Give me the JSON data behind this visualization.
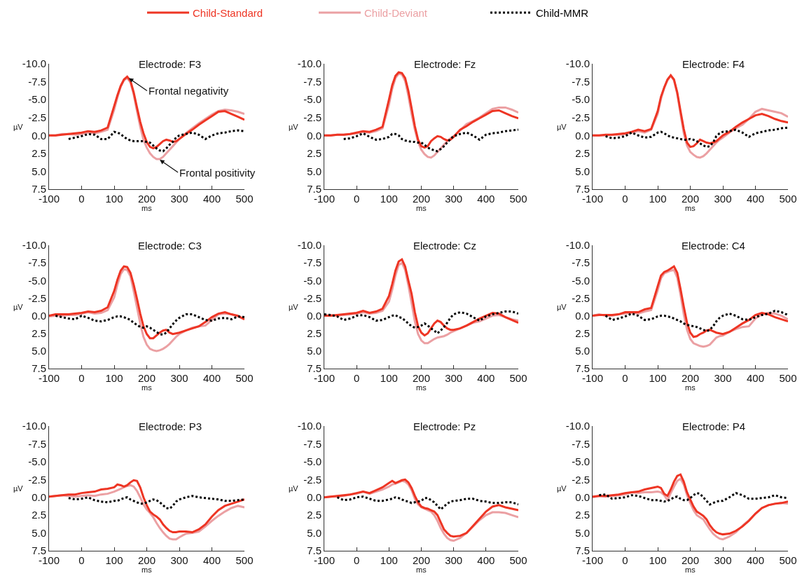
{
  "chart_data": [
    {
      "type": "line",
      "title": "Electrode: F3",
      "xlabel": "ms",
      "ylabel": "µV",
      "legend": "top",
      "xlim": [
        -100,
        500
      ],
      "xticks": [
        -100,
        0,
        100,
        200,
        300,
        400,
        500
      ],
      "ylim": [
        7.5,
        -10
      ],
      "yticks": [
        {
          "value": -10,
          "label": "-10.0"
        },
        {
          "value": -7.5,
          "label": "-7.5"
        },
        {
          "value": -5,
          "label": "-5.0"
        },
        {
          "value": -2.5,
          "label": "-2.5"
        },
        {
          "value": 0,
          "label": "0.0"
        },
        {
          "value": 2.5,
          "label": "2.5"
        },
        {
          "value": 5,
          "label": "5.0"
        },
        {
          "value": 7.5,
          "label": "7.5"
        }
      ],
      "annotations": [
        {
          "text": "Frontal negativity",
          "x": 145,
          "y": -8.0
        },
        {
          "text": "Frontal positivity",
          "x": 240,
          "y": 3.4
        }
      ],
      "x": [
        -100,
        -80,
        -60,
        -40,
        -20,
        0,
        20,
        40,
        60,
        80,
        100,
        110,
        120,
        130,
        140,
        150,
        160,
        170,
        180,
        190,
        200,
        210,
        220,
        230,
        240,
        250,
        260,
        270,
        280,
        290,
        300,
        320,
        340,
        360,
        380,
        400,
        420,
        440,
        460,
        480,
        500
      ],
      "series": [
        {
          "name": "Child-Standard",
          "color": "#ee3524",
          "line_style": "solid",
          "values": [
            0,
            0,
            -0.1,
            -0.2,
            -0.3,
            -0.4,
            -0.6,
            -0.5,
            -0.7,
            -1.1,
            -4.1,
            -5.6,
            -6.9,
            -7.8,
            -8.2,
            -7.6,
            -6.0,
            -3.9,
            -1.9,
            -0.3,
            0.9,
            1.6,
            1.8,
            1.6,
            1.2,
            0.8,
            0.6,
            0.7,
            0.9,
            0.8,
            0.5,
            -0.2,
            -0.8,
            -1.5,
            -2.1,
            -2.7,
            -3.3,
            -3.4,
            -3.0,
            -2.6,
            -2.2
          ]
        },
        {
          "name": "Child-Deviant",
          "color": "#eba0a3",
          "line_style": "solid",
          "values": [
            0,
            0,
            -0.2,
            -0.2,
            -0.1,
            -0.2,
            -0.4,
            -0.3,
            -0.5,
            -0.8,
            -3.6,
            -5.3,
            -6.8,
            -7.7,
            -8.0,
            -7.4,
            -5.7,
            -3.4,
            -1.2,
            0.6,
            1.7,
            2.5,
            3.0,
            3.3,
            3.3,
            3.0,
            2.5,
            2.0,
            1.5,
            1.0,
            0.5,
            -0.3,
            -1.0,
            -1.7,
            -2.3,
            -2.9,
            -3.4,
            -3.6,
            -3.5,
            -3.3,
            -3.0
          ]
        },
        {
          "name": "Child-MMR",
          "color": "#000000",
          "line_style": "dotted",
          "values": [
            null,
            null,
            null,
            0.5,
            0.3,
            0.1,
            -0.2,
            -0.1,
            0.5,
            0.5,
            -0.5,
            -0.4,
            -0.2,
            0.2,
            0.5,
            0.7,
            0.8,
            0.8,
            0.8,
            0.8,
            0.9,
            1.0,
            1.4,
            1.8,
            2.1,
            2.2,
            1.8,
            1.3,
            0.9,
            0.3,
            0.0,
            -0.2,
            -0.4,
            -0.1,
            0.5,
            0.0,
            -0.3,
            -0.4,
            -0.6,
            -0.7,
            -0.6
          ]
        }
      ]
    },
    {
      "type": "line",
      "title": "Electrode: Fz",
      "xlabel": "ms",
      "ylabel": "µV",
      "xlim": [
        -100,
        500
      ],
      "xticks": [
        -100,
        0,
        100,
        200,
        300,
        400,
        500
      ],
      "ylim": [
        7.5,
        -10
      ],
      "yticks": [
        {
          "value": -10,
          "label": "-10.0"
        },
        {
          "value": -7.5,
          "label": "-7.5"
        },
        {
          "value": -5,
          "label": "-5.0"
        },
        {
          "value": -2.5,
          "label": "-2.5"
        },
        {
          "value": 0,
          "label": "0.0"
        },
        {
          "value": 2.5,
          "label": "2.5"
        },
        {
          "value": 5,
          "label": "5.0"
        },
        {
          "value": 7.5,
          "label": "7.5"
        }
      ],
      "x": [
        -100,
        -80,
        -60,
        -40,
        -20,
        0,
        20,
        40,
        60,
        80,
        100,
        110,
        120,
        130,
        140,
        150,
        160,
        170,
        180,
        190,
        200,
        210,
        220,
        230,
        240,
        250,
        260,
        270,
        280,
        290,
        300,
        320,
        340,
        360,
        380,
        400,
        420,
        440,
        460,
        480,
        500
      ],
      "series": [
        {
          "color": "#ee3524",
          "line_style": "solid",
          "values": [
            0,
            0,
            -0.1,
            -0.1,
            -0.2,
            -0.4,
            -0.6,
            -0.5,
            -0.8,
            -1.2,
            -5.0,
            -7.0,
            -8.3,
            -8.8,
            -8.7,
            -8.0,
            -6.2,
            -3.8,
            -1.3,
            0.6,
            1.5,
            1.7,
            1.5,
            0.8,
            0.4,
            0.1,
            0.2,
            0.5,
            0.7,
            0.6,
            0.2,
            -0.8,
            -1.3,
            -1.9,
            -2.4,
            -2.9,
            -3.4,
            -3.5,
            -3.1,
            -2.7,
            -2.4
          ]
        },
        {
          "color": "#eba0a3",
          "line_style": "solid",
          "values": [
            0,
            0,
            -0.1,
            -0.1,
            -0.2,
            -0.3,
            -0.5,
            -0.4,
            -0.6,
            -1.0,
            -4.3,
            -6.5,
            -8.0,
            -8.6,
            -8.5,
            -7.6,
            -5.5,
            -3.0,
            -0.8,
            0.9,
            2.0,
            2.6,
            3.0,
            3.1,
            2.8,
            2.3,
            1.8,
            1.3,
            0.8,
            0.4,
            0.1,
            -0.7,
            -1.6,
            -2.0,
            -2.5,
            -3.1,
            -3.7,
            -3.9,
            -3.9,
            -3.6,
            -3.2
          ]
        },
        {
          "color": "#000000",
          "line_style": "dotted",
          "values": [
            null,
            null,
            null,
            0.5,
            0.4,
            0.1,
            -0.3,
            0.2,
            0.6,
            0.5,
            0.2,
            -0.2,
            -0.2,
            0.0,
            0.5,
            0.7,
            0.8,
            0.9,
            0.9,
            1.0,
            1.0,
            1.3,
            1.7,
            1.9,
            2.1,
            2.2,
            1.9,
            1.5,
            1.0,
            0.5,
            0.1,
            -0.2,
            -0.4,
            0.0,
            0.6,
            -0.1,
            -0.3,
            -0.4,
            -0.6,
            -0.7,
            -0.8
          ]
        }
      ]
    },
    {
      "type": "line",
      "title": "Electrode: F4",
      "xlabel": "ms",
      "ylabel": "µV",
      "xlim": [
        -100,
        500
      ],
      "xticks": [
        -100,
        0,
        100,
        200,
        300,
        400,
        500
      ],
      "ylim": [
        7.5,
        -10
      ],
      "yticks": [
        {
          "value": -10,
          "label": "-10.0"
        },
        {
          "value": -7.5,
          "label": "-7.5"
        },
        {
          "value": -5,
          "label": "-5.0"
        },
        {
          "value": -2.5,
          "label": "-2.5"
        },
        {
          "value": 0,
          "label": "0.0"
        },
        {
          "value": 2.5,
          "label": "2.5"
        },
        {
          "value": 5,
          "label": "5.0"
        },
        {
          "value": 7.5,
          "label": "7.5"
        }
      ],
      "x": [
        -100,
        -80,
        -60,
        -40,
        -20,
        0,
        20,
        40,
        60,
        80,
        100,
        110,
        120,
        130,
        140,
        150,
        160,
        170,
        180,
        190,
        200,
        210,
        220,
        230,
        240,
        250,
        260,
        270,
        280,
        290,
        300,
        320,
        340,
        360,
        380,
        400,
        420,
        440,
        460,
        480,
        500
      ],
      "series": [
        {
          "color": "#ee3524",
          "line_style": "solid",
          "values": [
            0,
            0,
            -0.1,
            -0.1,
            -0.2,
            -0.3,
            -0.5,
            -0.8,
            -0.6,
            -0.9,
            -3.4,
            -5.4,
            -6.7,
            -7.8,
            -8.4,
            -7.8,
            -6.0,
            -3.4,
            -0.9,
            1.0,
            1.6,
            1.5,
            1.1,
            0.6,
            0.8,
            1.0,
            1.1,
            1.0,
            0.8,
            0.4,
            0.0,
            -0.5,
            -1.2,
            -1.8,
            -2.3,
            -2.8,
            -3.0,
            -2.7,
            -2.3,
            -2.0,
            -1.8
          ]
        },
        {
          "color": "#eba0a3",
          "line_style": "solid",
          "values": [
            0,
            0,
            0,
            -0.1,
            -0.1,
            -0.2,
            -0.4,
            -0.6,
            -0.4,
            -0.8,
            -3.0,
            -5.1,
            -6.6,
            -7.7,
            -8.3,
            -7.7,
            -5.8,
            -3.0,
            -0.3,
            1.4,
            2.3,
            2.7,
            3.0,
            3.1,
            2.9,
            2.5,
            2.0,
            1.5,
            1.0,
            0.6,
            0.3,
            -0.4,
            -1.0,
            -1.5,
            -2.3,
            -3.3,
            -3.7,
            -3.5,
            -3.3,
            -3.1,
            -2.6
          ]
        },
        {
          "color": "#000000",
          "line_style": "dotted",
          "values": [
            null,
            null,
            0.1,
            0.4,
            0.3,
            0.1,
            -0.4,
            0.0,
            0.3,
            0.2,
            -0.4,
            -0.5,
            -0.3,
            0.0,
            0.2,
            0.3,
            0.4,
            0.5,
            0.6,
            0.6,
            0.5,
            0.6,
            0.8,
            1.1,
            1.4,
            1.6,
            1.5,
            1.0,
            0.1,
            -0.3,
            -0.5,
            -0.6,
            -0.8,
            -0.4,
            0.2,
            -0.3,
            -0.5,
            -0.7,
            -0.8,
            -1.0,
            -1.1
          ]
        }
      ]
    },
    {
      "type": "line",
      "title": "Electrode: C3",
      "xlabel": "ms",
      "ylabel": "µV",
      "xlim": [
        -100,
        500
      ],
      "xticks": [
        -100,
        0,
        100,
        200,
        300,
        400,
        500
      ],
      "ylim": [
        7.5,
        -10
      ],
      "yticks": [
        {
          "value": -10,
          "label": "-10.0"
        },
        {
          "value": -7.5,
          "label": "-7.5"
        },
        {
          "value": -5,
          "label": "-5.0"
        },
        {
          "value": -2.5,
          "label": "-2.5"
        },
        {
          "value": 0,
          "label": "0.0"
        },
        {
          "value": 2.5,
          "label": "2.5"
        },
        {
          "value": 5,
          "label": "5.0"
        },
        {
          "value": 7.5,
          "label": "7.5"
        }
      ],
      "x": [
        -100,
        -80,
        -60,
        -40,
        -20,
        0,
        20,
        40,
        60,
        80,
        100,
        110,
        120,
        130,
        140,
        150,
        160,
        170,
        180,
        190,
        200,
        210,
        220,
        230,
        240,
        250,
        260,
        270,
        280,
        290,
        300,
        320,
        340,
        360,
        380,
        400,
        420,
        440,
        460,
        480,
        500
      ],
      "series": [
        {
          "color": "#ee3524",
          "line_style": "solid",
          "values": [
            0,
            -0.2,
            -0.2,
            -0.2,
            -0.3,
            -0.4,
            -0.6,
            -0.5,
            -0.7,
            -1.2,
            -3.5,
            -5.1,
            -6.4,
            -7.0,
            -6.9,
            -6.1,
            -4.4,
            -2.4,
            -0.3,
            1.5,
            2.6,
            3.2,
            3.2,
            2.8,
            2.4,
            2.1,
            2.0,
            2.4,
            2.6,
            2.5,
            2.4,
            2.1,
            1.8,
            1.5,
            0.9,
            0.2,
            -0.3,
            -0.5,
            -0.2,
            0.0,
            0.5
          ]
        },
        {
          "color": "#eba0a3",
          "line_style": "solid",
          "values": [
            0.1,
            0.0,
            0.0,
            -0.1,
            -0.1,
            -0.3,
            -0.5,
            -0.3,
            -0.4,
            -0.8,
            -2.6,
            -4.4,
            -5.9,
            -6.6,
            -6.5,
            -5.6,
            -3.5,
            -1.2,
            1.1,
            3.0,
            4.1,
            4.7,
            4.9,
            5.0,
            4.9,
            4.7,
            4.4,
            4.0,
            3.5,
            3.0,
            2.6,
            2.1,
            1.7,
            1.5,
            1.4,
            0.6,
            -0.2,
            -0.3,
            -0.2,
            0.1,
            0.5
          ]
        },
        {
          "color": "#000000",
          "line_style": "dotted",
          "values": [
            null,
            0.0,
            0.2,
            0.4,
            0.5,
            0.0,
            0.3,
            0.7,
            0.8,
            0.6,
            0.2,
            0.1,
            0.1,
            0.2,
            0.4,
            0.6,
            1.0,
            1.3,
            1.6,
            1.7,
            1.5,
            1.7,
            2.0,
            2.3,
            2.6,
            2.7,
            2.4,
            1.8,
            1.2,
            0.7,
            0.3,
            -0.2,
            -0.2,
            0.2,
            0.6,
            0.7,
            0.4,
            0.3,
            0.5,
            0.1,
            0.2
          ]
        }
      ]
    },
    {
      "type": "line",
      "title": "Electrode: Cz",
      "xlabel": "ms",
      "ylabel": "µV",
      "xlim": [
        -100,
        500
      ],
      "xticks": [
        -100,
        0,
        100,
        200,
        300,
        400,
        500
      ],
      "ylim": [
        7.5,
        -10
      ],
      "yticks": [
        {
          "value": -10,
          "label": "-10.0"
        },
        {
          "value": -7.5,
          "label": "-7.5"
        },
        {
          "value": -5,
          "label": "-5.0"
        },
        {
          "value": -2.5,
          "label": "-2.5"
        },
        {
          "value": 0,
          "label": "0.0"
        },
        {
          "value": 2.5,
          "label": "2.5"
        },
        {
          "value": 5,
          "label": "5.0"
        },
        {
          "value": 7.5,
          "label": "7.5"
        }
      ],
      "x": [
        -100,
        -80,
        -60,
        -40,
        -20,
        0,
        20,
        40,
        60,
        80,
        100,
        110,
        120,
        130,
        140,
        150,
        160,
        170,
        180,
        190,
        200,
        210,
        220,
        230,
        240,
        250,
        260,
        270,
        280,
        290,
        300,
        320,
        340,
        360,
        380,
        400,
        420,
        440,
        460,
        480,
        500
      ],
      "series": [
        {
          "color": "#ee3524",
          "line_style": "solid",
          "values": [
            0.0,
            0.0,
            -0.1,
            -0.2,
            -0.3,
            -0.4,
            -0.7,
            -0.4,
            -0.6,
            -1.0,
            -2.8,
            -4.5,
            -6.4,
            -7.7,
            -8.0,
            -7.0,
            -5.0,
            -3.1,
            -0.5,
            1.5,
            2.4,
            2.8,
            2.5,
            1.8,
            1.1,
            0.7,
            0.9,
            1.4,
            1.8,
            2.0,
            2.0,
            1.8,
            1.4,
            0.9,
            0.4,
            0.0,
            -0.4,
            -0.3,
            0.2,
            0.6,
            1.0
          ]
        },
        {
          "color": "#eba0a3",
          "line_style": "solid",
          "values": [
            0.0,
            -0.1,
            0.0,
            -0.1,
            -0.2,
            -0.3,
            -0.5,
            -0.3,
            -0.4,
            -0.7,
            -2.0,
            -3.7,
            -5.7,
            -7.2,
            -7.5,
            -6.5,
            -4.3,
            -1.8,
            0.8,
            2.6,
            3.5,
            3.9,
            3.9,
            3.6,
            3.3,
            3.1,
            3.0,
            2.9,
            2.7,
            2.4,
            2.2,
            1.8,
            1.4,
            1.0,
            0.8,
            0.4,
            0.0,
            -0.1,
            0.2,
            0.5,
            0.7
          ]
        },
        {
          "color": "#000000",
          "line_style": "dotted",
          "values": [
            -0.2,
            -0.1,
            0.1,
            0.6,
            0.4,
            0.0,
            -0.1,
            0.2,
            0.7,
            0.6,
            0.2,
            0.0,
            -0.1,
            0.2,
            0.3,
            0.7,
            1.1,
            1.5,
            1.7,
            1.6,
            1.4,
            1.1,
            1.4,
            1.8,
            2.1,
            2.5,
            2.1,
            1.6,
            1.0,
            0.3,
            -0.2,
            -0.5,
            -0.3,
            0.2,
            0.7,
            0.1,
            -0.2,
            -0.4,
            -0.6,
            -0.6,
            -0.3
          ]
        }
      ]
    },
    {
      "type": "line",
      "title": "Electrode: C4",
      "xlabel": "ms",
      "ylabel": "µV",
      "xlim": [
        -100,
        500
      ],
      "xticks": [
        -100,
        0,
        100,
        200,
        300,
        400,
        500
      ],
      "ylim": [
        7.5,
        -10
      ],
      "yticks": [
        {
          "value": -10,
          "label": "-10.0"
        },
        {
          "value": -7.5,
          "label": "-7.5"
        },
        {
          "value": -5,
          "label": "-5.0"
        },
        {
          "value": -2.5,
          "label": "-2.5"
        },
        {
          "value": 0,
          "label": "0.0"
        },
        {
          "value": 2.5,
          "label": "2.5"
        },
        {
          "value": 5,
          "label": "5.0"
        },
        {
          "value": 7.5,
          "label": "7.5"
        }
      ],
      "x": [
        -100,
        -80,
        -60,
        -40,
        -20,
        0,
        20,
        40,
        60,
        80,
        100,
        110,
        120,
        130,
        140,
        150,
        160,
        170,
        180,
        190,
        200,
        210,
        220,
        230,
        240,
        250,
        260,
        270,
        280,
        290,
        300,
        320,
        340,
        360,
        380,
        400,
        420,
        440,
        460,
        480,
        500
      ],
      "series": [
        {
          "color": "#ee3524",
          "line_style": "solid",
          "values": [
            0.0,
            -0.1,
            -0.1,
            -0.1,
            -0.2,
            -0.5,
            -0.5,
            -0.5,
            -0.9,
            -1.1,
            -4.2,
            -5.7,
            -6.2,
            -6.4,
            -6.7,
            -7.0,
            -6.1,
            -3.8,
            -1.3,
            1.0,
            2.4,
            3.0,
            2.9,
            2.6,
            2.4,
            2.1,
            2.0,
            2.2,
            2.4,
            2.5,
            2.6,
            2.3,
            1.7,
            1.1,
            0.6,
            -0.1,
            -0.4,
            -0.2,
            0.2,
            0.5,
            0.8
          ]
        },
        {
          "color": "#eba0a3",
          "line_style": "solid",
          "values": [
            0.0,
            -0.2,
            0.0,
            0.0,
            -0.2,
            -0.3,
            -0.4,
            -0.3,
            -0.6,
            -0.8,
            -3.6,
            -5.3,
            -6.0,
            -6.2,
            -6.4,
            -6.5,
            -5.4,
            -3.0,
            -0.2,
            2.0,
            3.3,
            3.9,
            4.1,
            4.3,
            4.4,
            4.3,
            4.1,
            3.6,
            3.1,
            2.9,
            2.8,
            2.3,
            1.9,
            1.6,
            1.5,
            0.4,
            -0.2,
            -0.4,
            -0.3,
            0.0,
            0.5
          ]
        },
        {
          "color": "#000000",
          "line_style": "dotted",
          "values": [
            null,
            null,
            0.0,
            0.6,
            0.4,
            0.1,
            -0.3,
            0.0,
            0.6,
            0.5,
            0.1,
            0.0,
            0.0,
            0.1,
            0.2,
            0.4,
            0.6,
            0.8,
            1.1,
            1.3,
            1.4,
            1.5,
            1.6,
            1.8,
            2.0,
            2.2,
            2.0,
            1.5,
            0.8,
            0.3,
            0.0,
            -0.3,
            0.0,
            0.5,
            0.6,
            0.2,
            -0.1,
            -0.3,
            -0.7,
            -0.5,
            -0.1
          ]
        }
      ]
    },
    {
      "type": "line",
      "title": "Electrode: P3",
      "xlabel": "ms",
      "ylabel": "µV",
      "xlim": [
        -100,
        500
      ],
      "xticks": [
        -100,
        0,
        100,
        200,
        300,
        400,
        500
      ],
      "ylim": [
        7.5,
        -10
      ],
      "yticks": [
        {
          "value": -10,
          "label": "-10.0"
        },
        {
          "value": -7.5,
          "label": "-7.5"
        },
        {
          "value": -5,
          "label": "-5.0"
        },
        {
          "value": -2.5,
          "label": "-2.5"
        },
        {
          "value": 0,
          "label": "0.0"
        },
        {
          "value": 2.5,
          "label": "2.5"
        },
        {
          "value": 5,
          "label": "5.0"
        },
        {
          "value": 7.5,
          "label": "7.5"
        }
      ],
      "x": [
        -100,
        -80,
        -60,
        -40,
        -20,
        0,
        20,
        40,
        60,
        80,
        100,
        110,
        120,
        130,
        140,
        150,
        160,
        170,
        180,
        190,
        200,
        210,
        220,
        230,
        240,
        250,
        260,
        270,
        280,
        290,
        300,
        320,
        340,
        360,
        380,
        400,
        420,
        440,
        460,
        480,
        500
      ],
      "series": [
        {
          "color": "#ee3524",
          "line_style": "solid",
          "values": [
            -0.1,
            -0.2,
            -0.3,
            -0.4,
            -0.4,
            -0.6,
            -0.7,
            -0.8,
            -1.1,
            -1.2,
            -1.4,
            -1.8,
            -1.7,
            -1.5,
            -1.7,
            -2.1,
            -2.4,
            -2.3,
            -1.4,
            0.0,
            1.1,
            2.0,
            2.4,
            2.7,
            3.1,
            3.8,
            4.3,
            4.7,
            4.9,
            4.9,
            4.8,
            4.8,
            4.9,
            4.5,
            3.8,
            2.7,
            1.8,
            1.2,
            0.9,
            0.6,
            0.3
          ]
        },
        {
          "color": "#eba0a3",
          "line_style": "solid",
          "values": [
            -0.1,
            -0.2,
            -0.3,
            -0.2,
            -0.1,
            -0.2,
            -0.3,
            -0.2,
            -0.4,
            -0.5,
            -0.8,
            -1.0,
            -1.2,
            -1.4,
            -1.6,
            -1.7,
            -1.5,
            -0.9,
            0.0,
            1.0,
            1.7,
            2.2,
            2.8,
            3.6,
            4.3,
            4.9,
            5.4,
            5.8,
            5.9,
            5.9,
            5.6,
            5.1,
            5.0,
            4.8,
            4.1,
            3.3,
            2.6,
            2.0,
            1.5,
            1.2,
            1.4
          ]
        },
        {
          "color": "#000000",
          "line_style": "dotted",
          "values": [
            null,
            null,
            null,
            0.1,
            0.3,
            0.2,
            0.0,
            0.4,
            0.6,
            0.7,
            0.5,
            0.5,
            0.3,
            0.1,
            0.0,
            0.3,
            0.5,
            0.7,
            0.9,
            0.9,
            0.7,
            0.5,
            0.3,
            0.4,
            0.7,
            1.1,
            1.5,
            1.6,
            1.2,
            0.6,
            0.3,
            0.0,
            -0.2,
            0.0,
            0.1,
            0.2,
            0.3,
            0.5,
            0.5,
            0.4,
            0.3
          ]
        }
      ]
    },
    {
      "type": "line",
      "title": "Electrode: Pz",
      "xlabel": "ms",
      "ylabel": "µV",
      "xlim": [
        -100,
        500
      ],
      "xticks": [
        -100,
        0,
        100,
        200,
        300,
        400,
        500
      ],
      "ylim": [
        7.5,
        -10
      ],
      "yticks": [
        {
          "value": -10,
          "label": "-10.0"
        },
        {
          "value": -7.5,
          "label": "-7.5"
        },
        {
          "value": -5,
          "label": "-5.0"
        },
        {
          "value": -2.5,
          "label": "-2.5"
        },
        {
          "value": 0,
          "label": "0.0"
        },
        {
          "value": 2.5,
          "label": "2.5"
        },
        {
          "value": 5,
          "label": "5.0"
        },
        {
          "value": 7.5,
          "label": "7.5"
        }
      ],
      "x": [
        -100,
        -80,
        -60,
        -40,
        -20,
        0,
        20,
        40,
        60,
        80,
        100,
        110,
        120,
        130,
        140,
        150,
        160,
        170,
        180,
        190,
        200,
        210,
        220,
        230,
        240,
        250,
        260,
        270,
        280,
        290,
        300,
        320,
        340,
        360,
        380,
        400,
        420,
        440,
        460,
        480,
        500
      ],
      "series": [
        {
          "color": "#ee3524",
          "line_style": "solid",
          "values": [
            0.0,
            -0.1,
            -0.2,
            -0.3,
            -0.4,
            -0.6,
            -0.8,
            -0.6,
            -1.0,
            -1.4,
            -2.0,
            -2.3,
            -2.0,
            -2.2,
            -2.4,
            -2.5,
            -2.1,
            -1.3,
            -0.2,
            0.7,
            1.3,
            1.5,
            1.6,
            1.8,
            2.0,
            2.5,
            3.5,
            4.5,
            5.0,
            5.4,
            5.5,
            5.4,
            5.0,
            4.0,
            3.0,
            2.0,
            1.3,
            1.1,
            1.4,
            1.6,
            1.8
          ]
        },
        {
          "color": "#eba0a3",
          "line_style": "solid",
          "values": [
            0.0,
            -0.1,
            -0.1,
            -0.2,
            -0.4,
            -0.5,
            -0.8,
            -0.5,
            -0.8,
            -1.1,
            -1.5,
            -1.8,
            -1.9,
            -2.1,
            -2.3,
            -2.2,
            -1.8,
            -1.0,
            0.2,
            1.0,
            1.4,
            1.6,
            1.8,
            2.0,
            2.5,
            3.3,
            4.3,
            5.1,
            5.7,
            6.0,
            6.1,
            5.7,
            5.0,
            4.1,
            3.2,
            2.5,
            2.1,
            2.1,
            2.2,
            2.5,
            2.8
          ]
        },
        {
          "color": "#000000",
          "line_style": "dotted",
          "values": [
            null,
            null,
            0.0,
            0.4,
            0.3,
            0.0,
            -0.1,
            0.2,
            0.5,
            0.5,
            0.3,
            0.2,
            0.0,
            0.1,
            0.3,
            0.5,
            0.6,
            0.8,
            0.7,
            0.6,
            0.5,
            0.1,
            0.1,
            0.4,
            0.7,
            1.2,
            1.7,
            1.3,
            0.9,
            0.6,
            0.5,
            0.4,
            0.2,
            0.2,
            0.5,
            0.6,
            0.8,
            0.8,
            0.7,
            0.7,
            1.0
          ]
        }
      ]
    },
    {
      "type": "line",
      "title": "Electrode: P4",
      "xlabel": "ms",
      "ylabel": "µV",
      "xlim": [
        -100,
        500
      ],
      "xticks": [
        -100,
        0,
        100,
        200,
        300,
        400,
        500
      ],
      "ylim": [
        7.5,
        -10
      ],
      "yticks": [
        {
          "value": -10,
          "label": "-10.0"
        },
        {
          "value": -7.5,
          "label": "-7.5"
        },
        {
          "value": -5,
          "label": "-5.0"
        },
        {
          "value": -2.5,
          "label": "-2.5"
        },
        {
          "value": 0,
          "label": "0.0"
        },
        {
          "value": 2.5,
          "label": "2.5"
        },
        {
          "value": 5,
          "label": "5.0"
        },
        {
          "value": 7.5,
          "label": "7.5"
        }
      ],
      "x": [
        -100,
        -80,
        -60,
        -40,
        -20,
        0,
        20,
        40,
        60,
        80,
        100,
        110,
        120,
        130,
        140,
        150,
        160,
        170,
        180,
        190,
        200,
        210,
        220,
        230,
        240,
        250,
        260,
        270,
        280,
        290,
        300,
        320,
        340,
        360,
        380,
        400,
        420,
        440,
        460,
        480,
        500
      ],
      "series": [
        {
          "color": "#ee3524",
          "line_style": "solid",
          "values": [
            -0.1,
            -0.2,
            -0.2,
            -0.3,
            -0.4,
            -0.6,
            -0.7,
            -0.8,
            -1.1,
            -1.3,
            -1.5,
            -1.3,
            -0.5,
            -0.2,
            -1.1,
            -2.2,
            -3.0,
            -3.2,
            -2.2,
            -0.7,
            0.3,
            1.3,
            2.0,
            2.3,
            2.6,
            3.1,
            3.9,
            4.5,
            4.9,
            5.1,
            5.2,
            5.1,
            4.7,
            4.1,
            3.3,
            2.3,
            1.5,
            1.1,
            0.9,
            0.8,
            0.6
          ]
        },
        {
          "color": "#eba0a3",
          "line_style": "solid",
          "values": [
            0.0,
            -0.2,
            -0.1,
            -0.2,
            -0.3,
            -0.4,
            -0.7,
            -0.6,
            -0.7,
            -0.7,
            -0.8,
            -0.7,
            -0.3,
            0.4,
            -0.6,
            -1.5,
            -2.3,
            -2.6,
            -1.8,
            -0.3,
            0.8,
            1.8,
            2.5,
            2.8,
            3.1,
            3.8,
            4.5,
            5.1,
            5.5,
            5.8,
            5.9,
            5.5,
            4.9,
            4.0,
            3.2,
            2.3,
            1.5,
            1.1,
            0.9,
            0.8,
            0.9
          ]
        },
        {
          "color": "#000000",
          "line_style": "dotted",
          "values": [
            null,
            -0.3,
            -0.4,
            0.2,
            0.1,
            0.0,
            -0.3,
            -0.2,
            0.1,
            0.4,
            0.4,
            0.5,
            0.6,
            0.5,
            0.3,
            0.0,
            -0.1,
            0.2,
            0.4,
            0.4,
            0.1,
            -0.3,
            -0.6,
            -0.5,
            0.0,
            0.5,
            1.0,
            0.8,
            0.6,
            0.5,
            0.5,
            0.0,
            -0.6,
            -0.3,
            0.2,
            0.2,
            0.1,
            0.0,
            -0.3,
            0.0,
            0.1
          ]
        }
      ]
    }
  ]
}
